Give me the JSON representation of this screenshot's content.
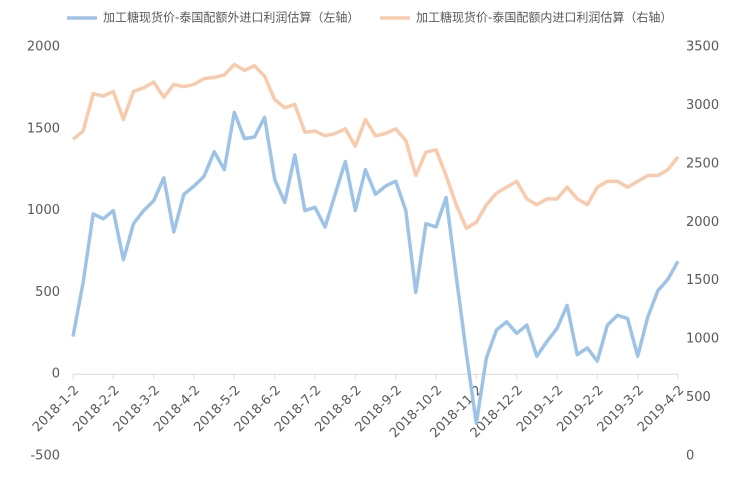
{
  "chart_data": {
    "type": "line",
    "categories": [
      "2018-1-2",
      null,
      null,
      null,
      "2018-2-2",
      null,
      null,
      null,
      "2018-3-2",
      null,
      null,
      null,
      "2018-4-2",
      null,
      null,
      null,
      "2018-5-2",
      null,
      null,
      null,
      "2018-6-2",
      null,
      null,
      null,
      "2018-7-2",
      null,
      null,
      null,
      "2018-8-2",
      null,
      null,
      null,
      "2018-9-2",
      null,
      null,
      null,
      "2018-10-2",
      null,
      null,
      null,
      "2018-11-2",
      null,
      null,
      null,
      "2018-12-2",
      null,
      null,
      null,
      "2019-1-2",
      null,
      null,
      null,
      "2019-2-2",
      null,
      null,
      null,
      "2019-3-2",
      null,
      null,
      null,
      "2019-4-2"
    ],
    "series": [
      {
        "name": "加工糖现货价-泰国配额外进口利润估算（左轴）",
        "color": "#9dc3e6",
        "axis": "y",
        "values": [
          230,
          560,
          980,
          950,
          1000,
          700,
          920,
          1000,
          1060,
          1200,
          870,
          1100,
          1150,
          1210,
          1360,
          1250,
          1600,
          1440,
          1450,
          1570,
          1190,
          1050,
          1340,
          1000,
          1020,
          900,
          1100,
          1300,
          1000,
          1250,
          1100,
          1150,
          1180,
          1000,
          500,
          920,
          900,
          1080,
          600,
          130,
          -300,
          100,
          270,
          320,
          250,
          300,
          110,
          200,
          280,
          420,
          120,
          160,
          80,
          300,
          360,
          340,
          110,
          350,
          510,
          580,
          690
        ]
      },
      {
        "name": "加工糖现货价-泰国配额内进口利润估算（右轴）",
        "color": "#f8cbad",
        "axis": "y2",
        "values": [
          2710,
          2780,
          3100,
          3080,
          3120,
          2880,
          3120,
          3150,
          3200,
          3070,
          3180,
          3160,
          3180,
          3230,
          3240,
          3260,
          3350,
          3300,
          3340,
          3250,
          3050,
          2980,
          3010,
          2770,
          2780,
          2740,
          2760,
          2800,
          2650,
          2880,
          2740,
          2760,
          2800,
          2700,
          2400,
          2600,
          2620,
          2400,
          2150,
          1950,
          2000,
          2150,
          2250,
          2300,
          2350,
          2200,
          2150,
          2200,
          2200,
          2300,
          2200,
          2150,
          2300,
          2350,
          2350,
          2300,
          2350,
          2400,
          2400,
          2450,
          2560
        ]
      }
    ],
    "ylim": [
      -500,
      2000
    ],
    "yticks": [
      -500,
      0,
      500,
      1000,
      1500,
      2000
    ],
    "y2lim": [
      0,
      3500
    ],
    "y2ticks": [
      0,
      500,
      1000,
      1500,
      2000,
      2500,
      3000,
      3500
    ]
  }
}
